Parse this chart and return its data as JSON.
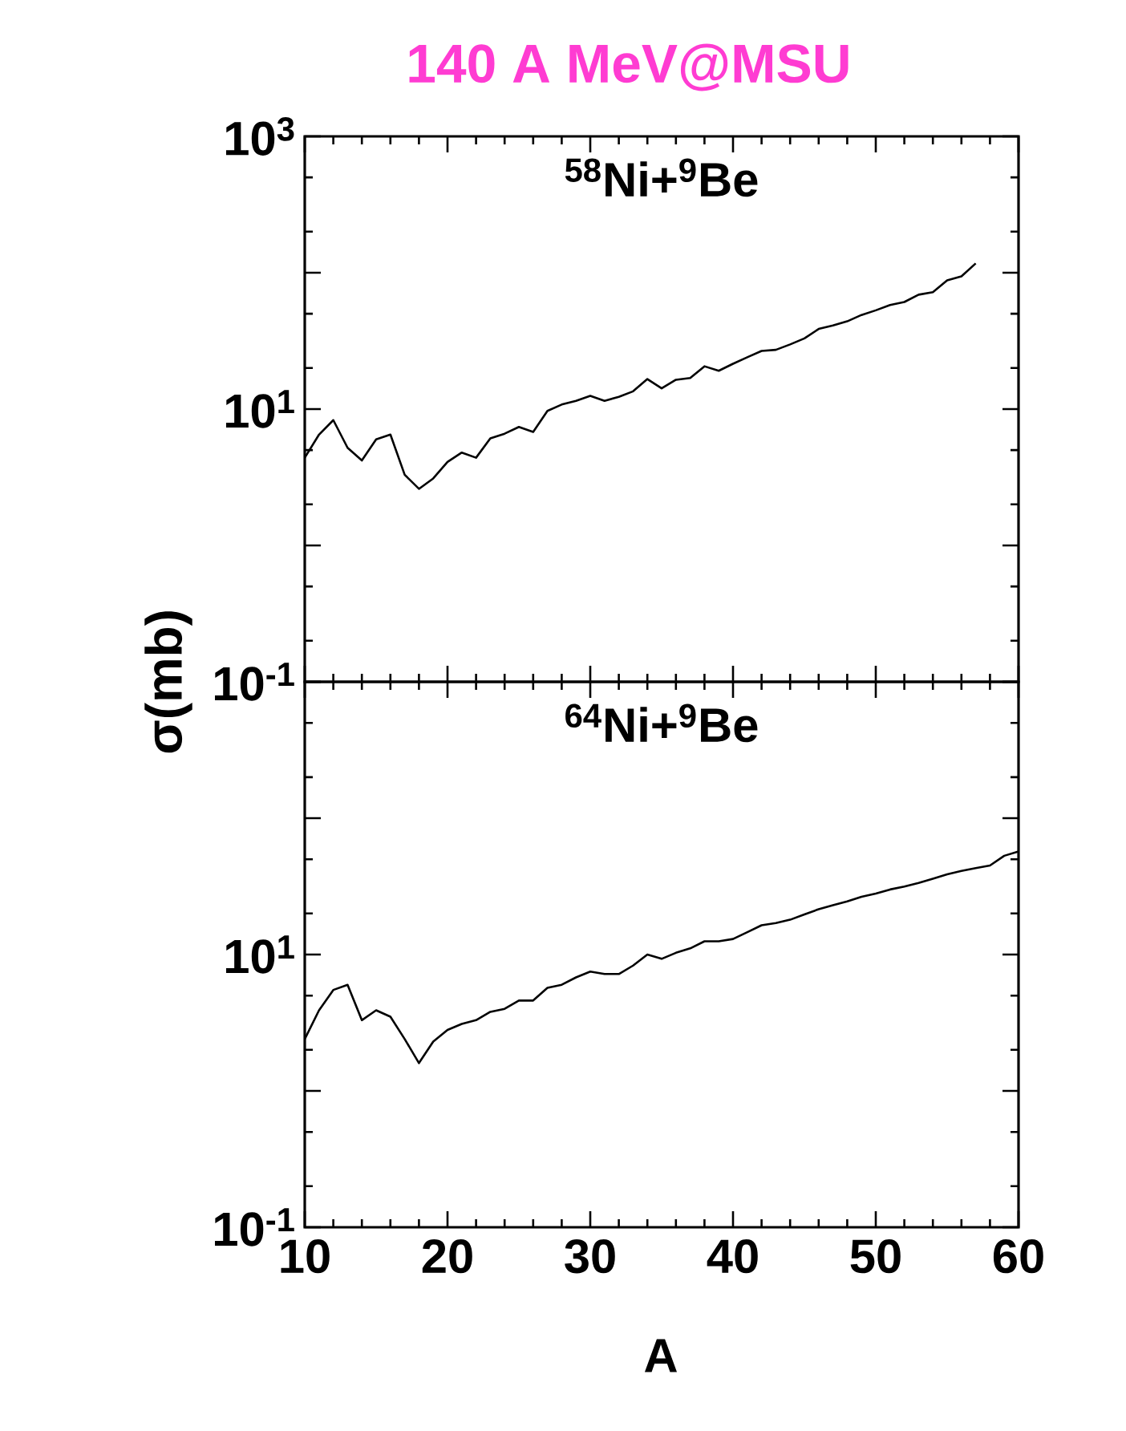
{
  "chart_data": [
    {
      "type": "line",
      "title": "140 A MeV@MSU",
      "ylabel": "σ(mb)",
      "annotations": [
        "$^{58}$Ni+$^{9}$Be"
      ],
      "log": "y",
      "tick_labels": "y",
      "xlim": [
        10,
        60
      ],
      "ylim": [
        0.1,
        1000
      ],
      "yticks": [
        {
          "value": 0.1,
          "label": "10$^{-1}$"
        },
        {
          "value": 1,
          "label": null
        },
        {
          "value": 10,
          "label": "10$^{1}$"
        },
        {
          "value": 100,
          "label": null
        },
        {
          "value": 1000,
          "label": "10$^{3}$"
        }
      ],
      "xticks": [
        10,
        20,
        30,
        40,
        50,
        60
      ],
      "marker": "none",
      "line_style": "solid",
      "x": [
        10,
        11,
        12,
        13,
        14,
        15,
        16,
        17,
        18,
        19,
        20,
        21,
        22,
        23,
        24,
        25,
        26,
        27,
        28,
        29,
        30,
        31,
        32,
        33,
        34,
        35,
        36,
        37,
        38,
        39,
        40,
        41,
        42,
        43,
        44,
        45,
        46,
        47,
        48,
        49,
        50,
        51,
        52,
        53,
        54,
        55,
        56,
        57
      ],
      "series": [
        {
          "color": "#000000",
          "values": [
            4.4,
            6.5,
            8.3,
            5.2,
            4.2,
            6.0,
            6.5,
            3.3,
            2.6,
            3.1,
            4.1,
            4.8,
            4.4,
            6.1,
            6.6,
            7.4,
            6.8,
            9.7,
            10.8,
            11.5,
            12.5,
            11.5,
            12.3,
            13.5,
            16.6,
            14.2,
            16.4,
            16.9,
            20.6,
            19.1,
            21.5,
            24,
            26.7,
            27.2,
            29.8,
            33,
            38.7,
            41,
            44,
            49,
            53,
            58,
            61,
            69,
            72,
            88,
            94,
            117
          ]
        }
      ]
    },
    {
      "type": "line",
      "xlabel": "A",
      "annotations": [
        "$^{64}$Ni+$^{9}$Be"
      ],
      "log": "y",
      "xlim": [
        10,
        60
      ],
      "ylim": [
        0.1,
        1000
      ],
      "yticks": [
        {
          "value": 0.1,
          "label": "10$^{-1}$"
        },
        {
          "value": 1,
          "label": null
        },
        {
          "value": 10,
          "label": "10$^{1}$"
        },
        {
          "value": 100,
          "label": null
        },
        {
          "value": 1000,
          "label": null
        }
      ],
      "xticks": [
        10,
        20,
        30,
        40,
        50,
        60
      ],
      "marker": "none",
      "line_style": "solid",
      "x": [
        10,
        11,
        12,
        13,
        14,
        15,
        16,
        17,
        18,
        19,
        20,
        21,
        22,
        23,
        24,
        25,
        26,
        27,
        28,
        29,
        30,
        31,
        32,
        33,
        34,
        35,
        36,
        37,
        38,
        39,
        40,
        41,
        42,
        43,
        44,
        45,
        46,
        47,
        48,
        49,
        50,
        51,
        52,
        53,
        54,
        55,
        56,
        57,
        58,
        59,
        60
      ],
      "series": [
        {
          "color": "#000000",
          "values": [
            2.4,
            3.9,
            5.5,
            6.0,
            3.3,
            3.9,
            3.5,
            2.4,
            1.6,
            2.3,
            2.8,
            3.1,
            3.3,
            3.8,
            4.0,
            4.6,
            4.6,
            5.7,
            6.0,
            6.8,
            7.5,
            7.2,
            7.2,
            8.3,
            10.0,
            9.3,
            10.3,
            11.1,
            12.5,
            12.5,
            13,
            14.6,
            16.4,
            17,
            18,
            19.7,
            21.5,
            23,
            24.5,
            26.5,
            28,
            30,
            31.5,
            33.5,
            36,
            38.7,
            41,
            43,
            45,
            53,
            57
          ]
        }
      ]
    }
  ]
}
